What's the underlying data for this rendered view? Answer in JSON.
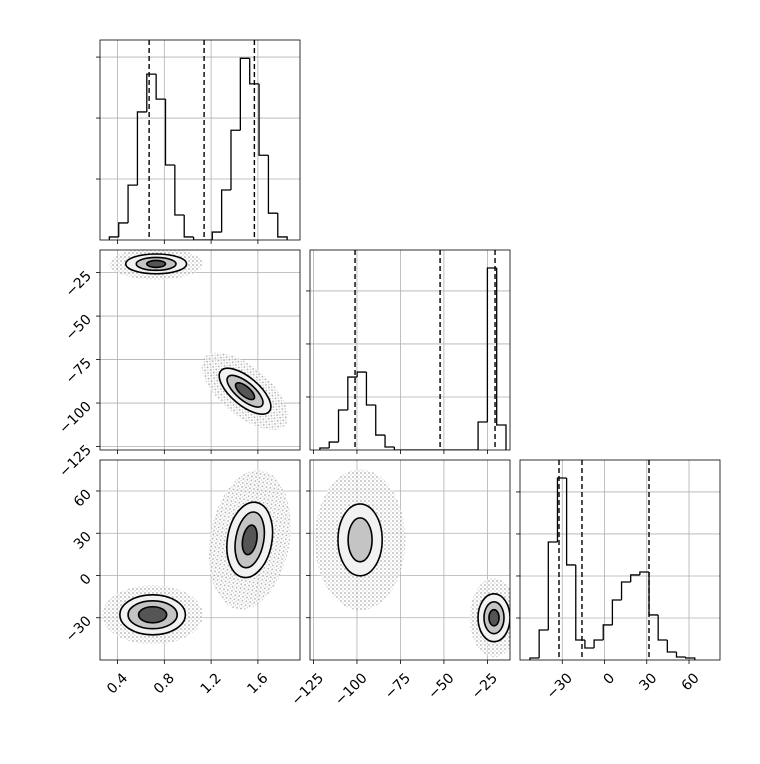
{
  "chart_data": {
    "type": "corner",
    "grid": true,
    "color": "#000000",
    "parameters": [
      {
        "lim": [
          0.25,
          1.96
        ],
        "ticks": [
          0.4,
          0.8,
          1.2,
          1.6
        ],
        "quantiles": [
          0.67,
          1.14,
          1.57
        ],
        "hist": {
          "bins": [
            0.33,
            0.41,
            0.49,
            0.57,
            0.65,
            0.73,
            0.81,
            0.89,
            0.97,
            1.05,
            1.13,
            1.21,
            1.29,
            1.37,
            1.45,
            1.53,
            1.61,
            1.69,
            1.77,
            1.85
          ],
          "counts": [
            25,
            140,
            450,
            1050,
            1360,
            1155,
            615,
            205,
            25,
            0,
            0,
            65,
            410,
            900,
            1490,
            1280,
            695,
            220,
            25
          ],
          "ylim": [
            0,
            1640
          ],
          "yticks": [
            500,
            1000,
            1500
          ]
        },
        "joint": []
      },
      {
        "lim": [
          -127,
          -12
        ],
        "ticks": [
          {
            "value": -125,
            "label": "−125"
          },
          {
            "value": -100,
            "label": "−100"
          },
          {
            "value": -75,
            "label": "−75"
          },
          {
            "value": -50,
            "label": "−50"
          },
          {
            "value": -25,
            "label": "−25"
          }
        ],
        "quantiles": [
          -101.1,
          -52.2,
          -20.6
        ],
        "hist": {
          "bins": [
            -121.3,
            -115.95,
            -110.6,
            -105.25,
            -99.9,
            -94.55,
            -89.2,
            -83.85,
            -78.5,
            -73.15,
            -67.8,
            -62.45,
            -57.1,
            -51.75,
            -46.4,
            -41.05,
            -35.7,
            -30.35,
            -25.0,
            -19.65,
            -14.3
          ],
          "counts": [
            19,
            75,
            377,
            688,
            735,
            424,
            141,
            28,
            0,
            0,
            0,
            0,
            0,
            0,
            0,
            0,
            0,
            264,
            1716,
            236
          ],
          "ylim": [
            0,
            1886
          ],
          "yticks": [
            500,
            1000,
            1500
          ]
        },
        "joint": [
          {
            "clusters": [
              {
                "x": 0.73,
                "y": -20,
                "angle": 0,
                "cloud": {
                  "rx": 0.4,
                  "ry": 9
                },
                "levels": [
                  {
                    "rx": 0.26,
                    "ry": 5.7
                  },
                  {
                    "rx": 0.17,
                    "ry": 3.7
                  },
                  {
                    "rx": 0.08,
                    "ry": 2
                  }
                ]
              },
              {
                "x": 1.49,
                "y": -93.2,
                "angle": 40,
                "cloud": {
                  "rx": 0.45,
                  "ry": 14
                },
                "levels": [
                  {
                    "rx": 0.27,
                    "ry": 8
                  },
                  {
                    "rx": 0.19,
                    "ry": 5.1
                  },
                  {
                    "rx": 0.1,
                    "ry": 2.8
                  }
                ]
              }
            ]
          }
        ]
      },
      {
        "lim": [
          -60,
          82
        ],
        "ticks": [
          {
            "value": -30,
            "label": "−30"
          },
          0,
          30,
          60
        ],
        "quantiles": [
          -32.3,
          -16.0,
          31.6
        ],
        "hist": {
          "bins": [
            -52.9,
            -46.4,
            -39.9,
            -33.4,
            -26.9,
            -20.4,
            -13.9,
            -7.4,
            -0.9,
            5.6,
            12.1,
            18.6,
            25.1,
            31.6,
            38.1,
            44.6,
            51.1,
            57.6,
            64.1
          ],
          "counts": [
            24,
            357,
            1404,
            2166,
            1131,
            238,
            143,
            238,
            417,
            714,
            928,
            1012,
            1047,
            536,
            238,
            95,
            36,
            24
          ],
          "ylim": [
            0,
            2380
          ],
          "yticks": [
            500,
            1000,
            1500,
            2000
          ]
        },
        "joint": [
          {
            "clusters": [
              {
                "x": 0.7,
                "y": -27.9,
                "angle": 0,
                "cloud": {
                  "rx": 0.43,
                  "ry": 21
                },
                "levels": [
                  {
                    "rx": 0.28,
                    "ry": 14.2
                  },
                  {
                    "rx": 0.21,
                    "ry": 9.9
                  },
                  {
                    "rx": 0.12,
                    "ry": 5.7
                  }
                ]
              },
              {
                "x": 1.53,
                "y": 25.3,
                "angle": 10,
                "cloud": {
                  "rx": 0.34,
                  "ry": 50
                },
                "levels": [
                  {
                    "rx": 0.19,
                    "ry": 27
                  },
                  {
                    "rx": 0.12,
                    "ry": 20
                  },
                  {
                    "rx": 0.06,
                    "ry": 10.6
                  }
                ]
              }
            ]
          },
          {
            "clusters": [
              {
                "x": -98.2,
                "y": 25.3,
                "angle": 0,
                "cloud": {
                  "rx": 26,
                  "ry": 50
                },
                "levels": [
                  {
                    "rx": 12.7,
                    "ry": 25.5
                  },
                  {
                    "rx": 6.9,
                    "ry": 15.6
                  }
                ]
              },
              {
                "x": -21.2,
                "y": -30,
                "angle": 0,
                "cloud": {
                  "rx": 14,
                  "ry": 28
                },
                "levels": [
                  {
                    "rx": 9.2,
                    "ry": 17
                  },
                  {
                    "rx": 5.75,
                    "ry": 11.3
                  },
                  {
                    "rx": 2.9,
                    "ry": 5.7
                  }
                ]
              }
            ]
          }
        ]
      }
    ]
  }
}
